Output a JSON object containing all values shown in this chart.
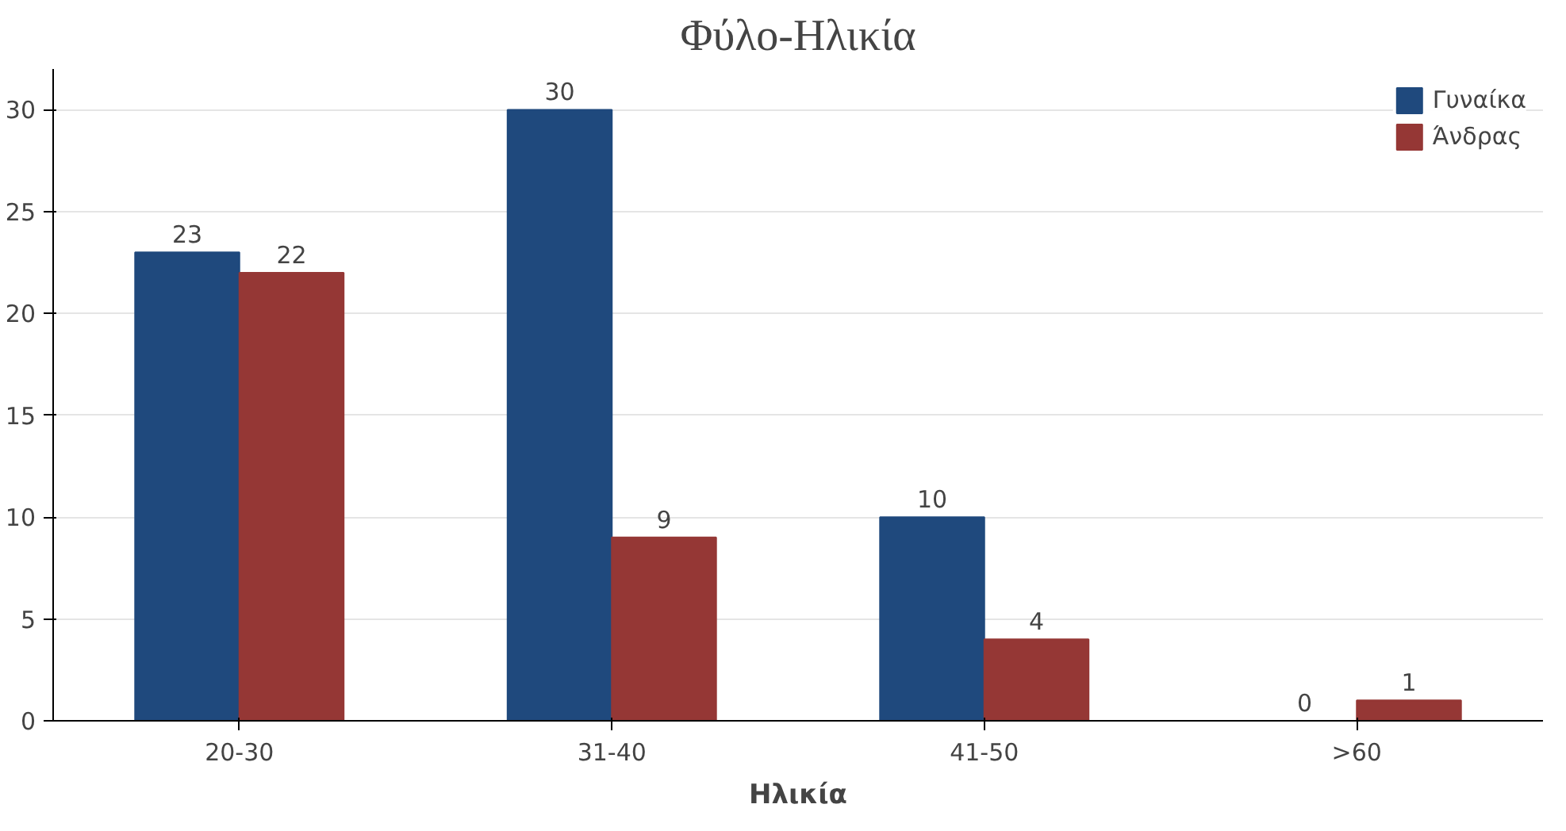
{
  "chart_data": {
    "type": "bar",
    "title": "Φύλο-Ηλικία",
    "xlabel": "Ηλικία",
    "categories": [
      "20-30",
      "31-40",
      "41-50",
      ">60"
    ],
    "series": [
      {
        "name": "Γυναίκα",
        "color": "#1f497d",
        "values": [
          23,
          30,
          10,
          0
        ]
      },
      {
        "name": "Άνδρας",
        "color": "#953735",
        "values": [
          22,
          9,
          4,
          1
        ]
      }
    ],
    "ylim": [
      0,
      32
    ],
    "yticks": [
      0,
      5,
      10,
      15,
      20,
      25,
      30
    ],
    "grid": "y",
    "legend": "top right",
    "data_labels": true
  }
}
